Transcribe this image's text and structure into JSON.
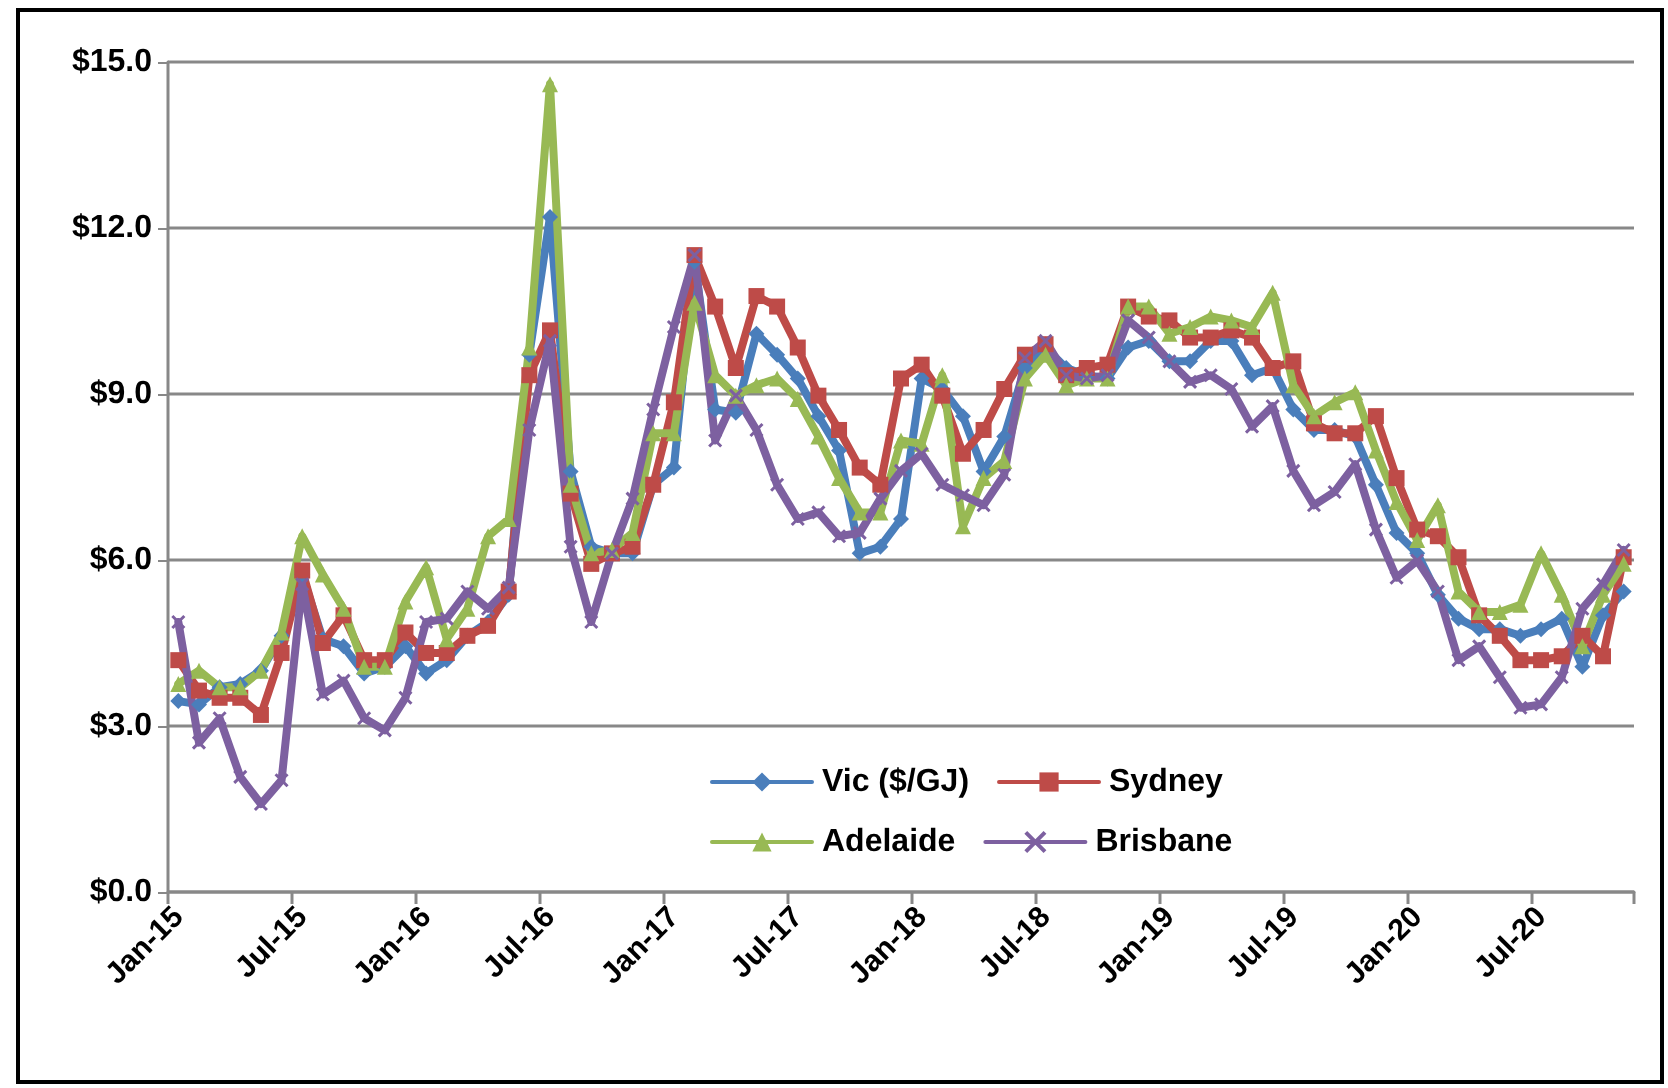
{
  "chart_data": {
    "type": "line",
    "categories": [
      "Jan-15",
      null,
      null,
      null,
      null,
      null,
      "Jul-15",
      null,
      null,
      null,
      null,
      null,
      "Jan-16",
      null,
      null,
      null,
      null,
      null,
      "Jul-16",
      null,
      null,
      null,
      null,
      null,
      "Jan-17",
      null,
      null,
      null,
      null,
      null,
      "Jul-17",
      null,
      null,
      null,
      null,
      null,
      "Jan-18",
      null,
      null,
      null,
      null,
      null,
      "Jul-18",
      null,
      null,
      null,
      null,
      null,
      "Jan-19",
      null,
      null,
      null,
      null,
      null,
      "Jul-19",
      null,
      null,
      null,
      null,
      null,
      "Jan-20",
      null,
      null,
      null,
      null,
      null,
      "Jul-20",
      null,
      null,
      null,
      null
    ],
    "series": [
      {
        "name": "Vic ($/GJ)",
        "color": "#4a7ebb",
        "marker": "diamond",
        "values": [
          3.45,
          3.39,
          3.7,
          3.76,
          4.0,
          4.63,
          5.74,
          4.57,
          4.44,
          3.95,
          4.07,
          4.44,
          3.95,
          4.19,
          4.63,
          4.88,
          5.37,
          9.71,
          12.2,
          7.6,
          6.24,
          6.12,
          6.12,
          7.36,
          7.67,
          11.39,
          8.72,
          8.66,
          10.09,
          9.71,
          9.28,
          8.6,
          7.98,
          6.12,
          6.24,
          6.74,
          9.28,
          9.09,
          8.6,
          7.6,
          8.23,
          9.47,
          9.84,
          9.47,
          9.34,
          9.28,
          9.84,
          9.96,
          9.59,
          9.59,
          9.96,
          9.96,
          9.34,
          9.47,
          8.72,
          8.35,
          8.35,
          8.23,
          7.36,
          6.49,
          6.12,
          5.37,
          4.94,
          4.75,
          4.75,
          4.63,
          4.75,
          4.94,
          4.07,
          5.0,
          5.43
        ]
      },
      {
        "name": "Sydney",
        "color": "#be4b48",
        "marker": "square",
        "values": [
          4.19,
          3.64,
          3.51,
          3.51,
          3.2,
          4.32,
          5.81,
          4.5,
          5.0,
          4.19,
          4.19,
          4.69,
          4.32,
          4.32,
          4.63,
          4.81,
          5.43,
          9.34,
          10.15,
          7.2,
          5.93,
          6.12,
          6.24,
          7.36,
          8.85,
          11.51,
          10.58,
          9.47,
          10.77,
          10.58,
          9.84,
          8.97,
          8.35,
          7.67,
          7.36,
          9.28,
          9.53,
          8.97,
          7.92,
          8.35,
          9.09,
          9.71,
          9.9,
          9.34,
          9.47,
          9.53,
          10.58,
          10.4,
          10.33,
          10.02,
          10.02,
          10.15,
          10.02,
          9.47,
          9.59,
          8.47,
          8.29,
          8.29,
          8.6,
          7.48,
          6.55,
          6.43,
          6.05,
          5.0,
          4.63,
          4.19,
          4.19,
          4.26,
          4.63,
          4.26,
          6.05
        ]
      },
      {
        "name": "Adelaide",
        "color": "#98b954",
        "marker": "triangle",
        "values": [
          3.76,
          4.0,
          3.7,
          3.7,
          4.0,
          4.69,
          6.43,
          5.74,
          5.12,
          4.07,
          4.07,
          5.25,
          5.87,
          4.57,
          5.12,
          6.43,
          6.74,
          9.84,
          14.6,
          7.36,
          6.12,
          6.18,
          6.49,
          8.29,
          8.29,
          10.65,
          9.34,
          8.97,
          9.16,
          9.28,
          8.91,
          8.23,
          7.48,
          6.86,
          6.86,
          8.16,
          8.1,
          9.34,
          6.61,
          7.48,
          7.79,
          9.28,
          9.71,
          9.16,
          9.28,
          9.28,
          10.58,
          10.58,
          10.09,
          10.21,
          10.4,
          10.33,
          10.21,
          10.83,
          9.16,
          8.6,
          8.85,
          9.03,
          7.98,
          7.05,
          6.36,
          6.99,
          5.43,
          5.06,
          5.06,
          5.19,
          6.12,
          5.37,
          4.44,
          5.37,
          5.93
        ]
      },
      {
        "name": "Brisbane",
        "color": "#7d60a0",
        "marker": "cross",
        "values": [
          4.88,
          2.7,
          3.14,
          2.08,
          1.59,
          2.02,
          5.56,
          3.57,
          3.82,
          3.14,
          2.92,
          3.51,
          4.88,
          4.94,
          5.43,
          5.12,
          5.5,
          8.35,
          9.96,
          6.24,
          4.88,
          6.12,
          7.11,
          8.72,
          10.21,
          11.51,
          8.16,
          8.97,
          8.35,
          7.36,
          6.74,
          6.86,
          6.43,
          6.49,
          7.11,
          7.61,
          7.92,
          7.36,
          7.17,
          6.99,
          7.54,
          9.65,
          9.96,
          9.34,
          9.28,
          9.34,
          10.33,
          10.02,
          9.59,
          9.22,
          9.34,
          9.09,
          8.41,
          8.78,
          7.61,
          6.99,
          7.23,
          7.73,
          6.55,
          5.68,
          5.99,
          5.43,
          4.19,
          4.44,
          3.88,
          3.33,
          3.39,
          3.88,
          5.12,
          5.56,
          6.18
        ]
      }
    ],
    "ylim": [
      0,
      15
    ],
    "yticks": [
      {
        "value": 0,
        "label": "$0.0"
      },
      {
        "value": 3,
        "label": "$3.0"
      },
      {
        "value": 6,
        "label": "$6.0"
      },
      {
        "value": 9,
        "label": "$9.0"
      },
      {
        "value": 12,
        "label": "$12.0"
      },
      {
        "value": 15,
        "label": "$15.0"
      }
    ],
    "grid": "y",
    "legend": "bottom",
    "line_style": "solid"
  }
}
